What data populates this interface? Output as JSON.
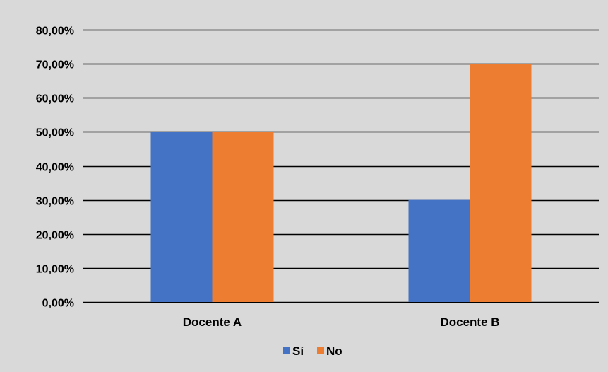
{
  "chart_data": {
    "type": "bar",
    "categories": [
      "Docente A",
      "Docente B"
    ],
    "series": [
      {
        "name": "Sí",
        "values": [
          50,
          30
        ],
        "color": "#4472C4"
      },
      {
        "name": "No",
        "values": [
          50,
          70
        ],
        "color": "#ED7D31"
      }
    ],
    "ylim": [
      0,
      80
    ],
    "yticks": [
      "0,00%",
      "10,00%",
      "20,00%",
      "30,00%",
      "40,00%",
      "50,00%",
      "60,00%",
      "70,00%",
      "80,00%"
    ],
    "grid": true,
    "legend_position": "bottom",
    "background_color": "#D9D9D9",
    "gridline_color": "#000000"
  }
}
